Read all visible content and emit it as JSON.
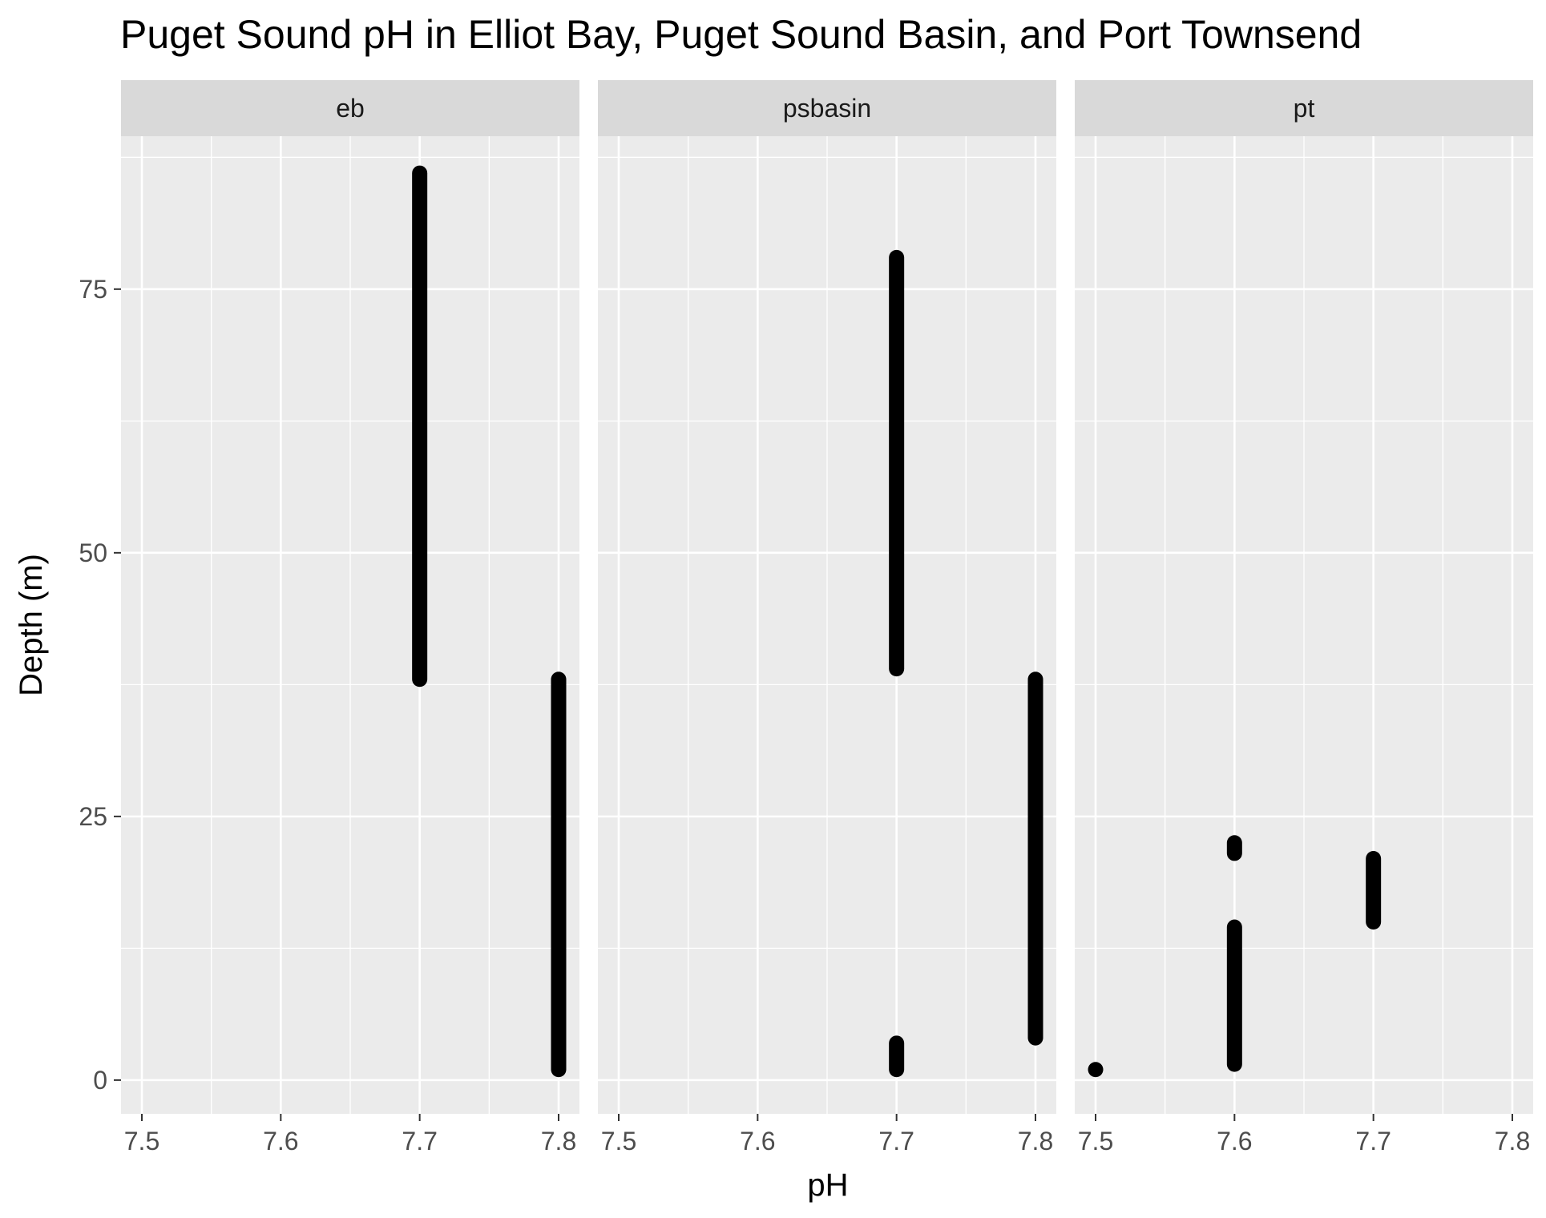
{
  "chart_data": {
    "type": "scatter",
    "title": "Puget Sound pH in Elliot Bay, Puget Sound Basin, and Port Townsend",
    "xlabel": "pH",
    "ylabel": "Depth (m)",
    "xlim": [
      7.485,
      7.815
    ],
    "ylim": [
      -3.2,
      89.5
    ],
    "x_ticks": [
      "7.5",
      "7.6",
      "7.7",
      "7.8"
    ],
    "y_ticks": [
      "0",
      "25",
      "50",
      "75"
    ],
    "grid": true,
    "facets": [
      {
        "label": "eb",
        "series": [
          {
            "x": 7.7,
            "depth_range": [
              38,
              86
            ]
          },
          {
            "x": 7.8,
            "depth_range": [
              1,
              38
            ]
          }
        ]
      },
      {
        "label": "psbasin",
        "series": [
          {
            "x": 7.7,
            "depth_range": [
              39,
              78
            ]
          },
          {
            "x": 7.7,
            "depth_range": [
              1,
              3.5
            ]
          },
          {
            "x": 7.8,
            "depth_range": [
              4,
              38
            ]
          }
        ]
      },
      {
        "label": "pt",
        "series": [
          {
            "x": 7.5,
            "depth_range": [
              1,
              1
            ]
          },
          {
            "x": 7.6,
            "depth_range": [
              21.5,
              22.5
            ]
          },
          {
            "x": 7.6,
            "depth_range": [
              1.5,
              14.5
            ]
          },
          {
            "x": 7.7,
            "depth_range": [
              15,
              21
            ]
          }
        ]
      }
    ]
  }
}
